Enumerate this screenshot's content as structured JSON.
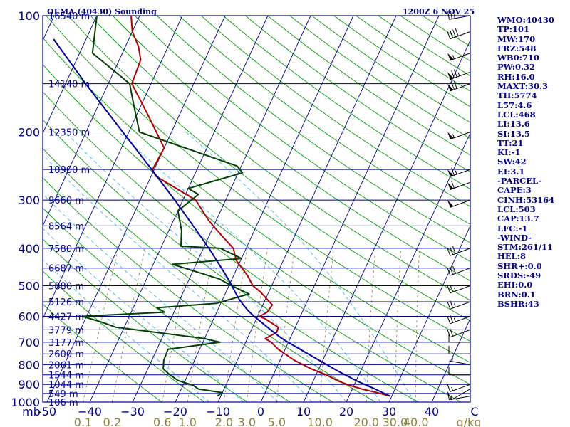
{
  "header": {
    "station": "OEMA (40430) Sounding",
    "time": "1200Z  6 NOV 25"
  },
  "colors": {
    "isobar": "#00008b",
    "isotherm": "#00008b",
    "dry_adiabat": "#00a000",
    "moist_adiabat": "#40b8e8",
    "mixing_ratio": "#8b7d3a",
    "temperature": "#b00000",
    "dewpoint": "#004000",
    "parcel": "#0000a0",
    "wind_barb": "#000000"
  },
  "indices": [
    "WMO:40430",
    "TP:101",
    "MW:170",
    "FRZ:548",
    "WB0:710",
    "PW:0.32",
    "RH:16.0",
    "MAXT:30.3",
    "TH:5774",
    "L57:4.6",
    "LCL:468",
    "LI:13.6",
    "SI:13.5",
    "TT:21",
    "KI:-1",
    "SW:42",
    "EI:3.1",
    "-PARCEL-",
    "CAPE:3",
    "CINH:53164",
    "LCL:503",
    "CAP:13.7",
    "LFC:-1",
    "-WIND-",
    "STM:261/11",
    "HEL:8",
    "SHR+:0.0",
    "SRDS:-49",
    "EHI:0.0",
    "BRN:0.1",
    "BSHR:43"
  ],
  "chart_data": {
    "type": "line",
    "title": "OEMA (40430) Sounding",
    "subtitle": "1200Z  6 NOV 25",
    "xlabel": "",
    "ylabel": "mb",
    "xlim": [
      -50,
      50
    ],
    "ylim": [
      1000,
      100
    ],
    "y_scale": "log",
    "skew": true,
    "pressure_labels": [
      {
        "p": 100,
        "label": "100"
      },
      {
        "p": 200,
        "label": "200"
      },
      {
        "p": 300,
        "label": "300"
      },
      {
        "p": 400,
        "label": "400"
      },
      {
        "p": 500,
        "label": "500"
      },
      {
        "p": 600,
        "label": "600"
      },
      {
        "p": 700,
        "label": "700"
      },
      {
        "p": 800,
        "label": "800"
      },
      {
        "p": 900,
        "label": "900"
      },
      {
        "p": 1000,
        "label": "1000"
      }
    ],
    "height_labels": [
      {
        "p": 100,
        "label": "16540 m"
      },
      {
        "p": 150,
        "label": "14140 m"
      },
      {
        "p": 200,
        "label": "12350 m"
      },
      {
        "p": 250,
        "label": "10900 m"
      },
      {
        "p": 300,
        "label": "9660 m"
      },
      {
        "p": 350,
        "label": "8564 m"
      },
      {
        "p": 400,
        "label": "7580 m"
      },
      {
        "p": 450,
        "label": "6687 m"
      },
      {
        "p": 500,
        "label": "5880 m"
      },
      {
        "p": 550,
        "label": "5126 m"
      },
      {
        "p": 600,
        "label": "4427 m"
      },
      {
        "p": 650,
        "label": "3779 m"
      },
      {
        "p": 700,
        "label": "3177 m"
      },
      {
        "p": 750,
        "label": "2600 m"
      },
      {
        "p": 800,
        "label": "2061 m"
      },
      {
        "p": 850,
        "label": "1544 m"
      },
      {
        "p": 900,
        "label": "1044 m"
      },
      {
        "p": 950,
        "label": "549 m"
      },
      {
        "p": 1000,
        "label": "106 m"
      }
    ],
    "temp_axis_labels": [
      "mb",
      "-50",
      "−40",
      "−30",
      "−20",
      "−10",
      "0",
      "10",
      "20",
      "30",
      "40",
      "C"
    ],
    "temp_axis_values": [
      null,
      -50,
      -40,
      -30,
      -20,
      -10,
      0,
      10,
      20,
      30,
      40,
      50
    ],
    "mixing_ratio_labels": [
      "0.1",
      "0.2",
      "0.6",
      "1.0",
      "2.0",
      "3.0",
      "5.0",
      "10.0",
      "20.0",
      "30.0",
      "40.0",
      "g/kg"
    ],
    "mixing_ratio_values": [
      0.1,
      0.2,
      0.6,
      1.0,
      2.0,
      3.0,
      5.0,
      10.0,
      20.0,
      30.0,
      40.0,
      null
    ],
    "series": [
      {
        "name": "Temperature",
        "p": [
          965,
          945,
          925,
          905,
          880,
          850,
          820,
          780,
          730,
          700,
          685,
          660,
          640,
          610,
          600,
          585,
          560,
          540,
          520,
          500,
          470,
          430,
          400,
          370,
          340,
          300,
          260,
          250,
          220,
          180,
          150,
          130,
          120,
          110,
          100
        ],
        "t": [
          29.6,
          26.2,
          22.2,
          19.0,
          15.6,
          12.4,
          8.2,
          3.4,
          -1.6,
          -4.0,
          -5.8,
          -3.8,
          -4.0,
          -7.8,
          -9.5,
          -8.2,
          -7.8,
          -9.8,
          -11.8,
          -14.4,
          -16.8,
          -21.0,
          -23.0,
          -27.2,
          -31.6,
          -37.0,
          -49.0,
          -50.4,
          -50.0,
          -57.5,
          -64.5,
          -65.0,
          -67.0,
          -70.0,
          -72.0
        ]
      },
      {
        "name": "Dewpoint",
        "p": [
          965,
          945,
          925,
          905,
          880,
          850,
          820,
          780,
          730,
          700,
          685,
          640,
          620,
          600,
          585,
          570,
          555,
          525,
          500,
          480,
          440,
          425,
          400,
          395,
          360,
          320,
          290,
          280,
          255,
          245,
          200,
          170,
          150,
          125,
          100
        ],
        "t": [
          -10.8,
          -10.0,
          -16.0,
          -17.6,
          -21.6,
          -24.2,
          -26.4,
          -27.2,
          -27.4,
          -16.0,
          -20.0,
          -42.0,
          -46.0,
          -51.0,
          -32.2,
          -34.4,
          -21.0,
          -14.4,
          -19.4,
          -23.0,
          -35.5,
          -20.0,
          -26.0,
          -35.5,
          -37.0,
          -40.0,
          -37.0,
          -40.0,
          -29.0,
          -31.0,
          -57.5,
          -61.8,
          -65.0,
          -77.0,
          -80.0
        ]
      },
      {
        "name": "Parcel",
        "p": [
          965,
          925,
          880,
          830,
          780,
          730,
          700,
          680,
          650,
          620,
          600,
          580,
          560,
          540,
          520,
          500,
          470,
          400,
          350,
          300,
          250,
          200,
          150,
          115
        ],
        "t": [
          29.6,
          25.3,
          20.0,
          14.6,
          9.2,
          3.5,
          -0.1,
          -2.4,
          -5.5,
          -8.6,
          -10.8,
          -12.8,
          -14.6,
          -16.3,
          -17.8,
          -19.3,
          -21.8,
          -28.7,
          -34.8,
          -41.9,
          -50.6,
          -61.4,
          -75.3,
          -87.6
        ]
      }
    ],
    "wind_barbs": [
      {
        "p": 965,
        "dir": 260,
        "spd": 15
      },
      {
        "p": 925,
        "dir": 240,
        "spd": 10
      },
      {
        "p": 900,
        "dir": 250,
        "spd": 15
      },
      {
        "p": 850,
        "dir": 270,
        "spd": 10
      },
      {
        "p": 800,
        "dir": 280,
        "spd": 5
      },
      {
        "p": 750,
        "dir": 270,
        "spd": 10
      },
      {
        "p": 700,
        "dir": 270,
        "spd": 10
      },
      {
        "p": 650,
        "dir": 250,
        "spd": 20
      },
      {
        "p": 600,
        "dir": 250,
        "spd": 25
      },
      {
        "p": 550,
        "dir": 250,
        "spd": 25
      },
      {
        "p": 500,
        "dir": 250,
        "spd": 25
      },
      {
        "p": 450,
        "dir": 250,
        "spd": 30
      },
      {
        "p": 400,
        "dir": 250,
        "spd": 30
      },
      {
        "p": 300,
        "dir": 250,
        "spd": 50
      },
      {
        "p": 270,
        "dir": 250,
        "spd": 60
      },
      {
        "p": 250,
        "dir": 250,
        "spd": 65
      },
      {
        "p": 200,
        "dir": 250,
        "spd": 55
      },
      {
        "p": 150,
        "dir": 250,
        "spd": 70
      },
      {
        "p": 140,
        "dir": 250,
        "spd": 75
      },
      {
        "p": 125,
        "dir": 250,
        "spd": 55
      },
      {
        "p": 110,
        "dir": 250,
        "spd": 40
      },
      {
        "p": 100,
        "dir": 260,
        "spd": 25
      }
    ]
  }
}
